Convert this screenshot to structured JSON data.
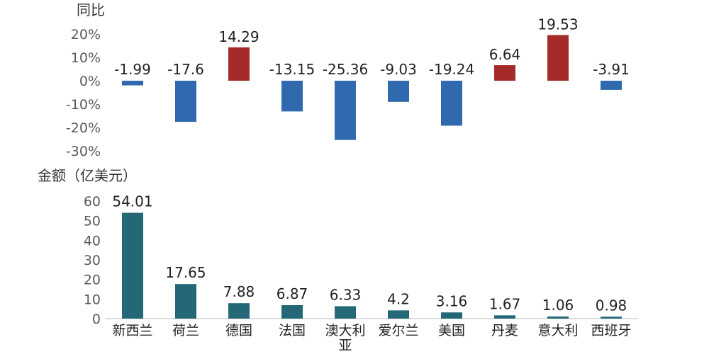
{
  "chart_data": [
    {
      "type": "bar",
      "ylabel": "同比",
      "categories": [
        "新西兰",
        "荷兰",
        "德国",
        "法国",
        "澳大利亚",
        "爱尔兰",
        "美国",
        "丹麦",
        "意大利",
        "西班牙"
      ],
      "values": [
        -1.99,
        -17.6,
        14.29,
        -13.15,
        -25.36,
        -9.03,
        -19.24,
        6.64,
        19.53,
        -3.91
      ],
      "value_labels": [
        "-1.99",
        "-17.6",
        "14.29",
        "-13.15",
        "-25.36",
        "-9.03",
        "-19.24",
        "6.64",
        "19.53",
        "-3.91"
      ],
      "yticks": [
        "20%",
        "10%",
        "0%",
        "-10%",
        "-20%",
        "-30%"
      ],
      "ylim": [
        -30,
        20
      ],
      "colors": {
        "positive": "#a52a2a",
        "negative": "#3069ae"
      }
    },
    {
      "type": "bar",
      "ylabel": "金额（亿美元）",
      "categories": [
        "新西兰",
        "荷兰",
        "德国",
        "法国",
        "澳大利亚",
        "爱尔兰",
        "美国",
        "丹麦",
        "意大利",
        "西班牙"
      ],
      "values": [
        54.01,
        17.65,
        7.88,
        6.87,
        6.33,
        4.2,
        3.16,
        1.67,
        1.06,
        0.98
      ],
      "value_labels": [
        "54.01",
        "17.65",
        "7.88",
        "6.87",
        "6.33",
        "4.2",
        "3.16",
        "1.67",
        "1.06",
        "0.98"
      ],
      "yticks": [
        "60",
        "50",
        "40",
        "30",
        "20",
        "10",
        "0"
      ],
      "ylim": [
        0,
        60
      ],
      "colors": {
        "bar": "#246878"
      }
    }
  ]
}
